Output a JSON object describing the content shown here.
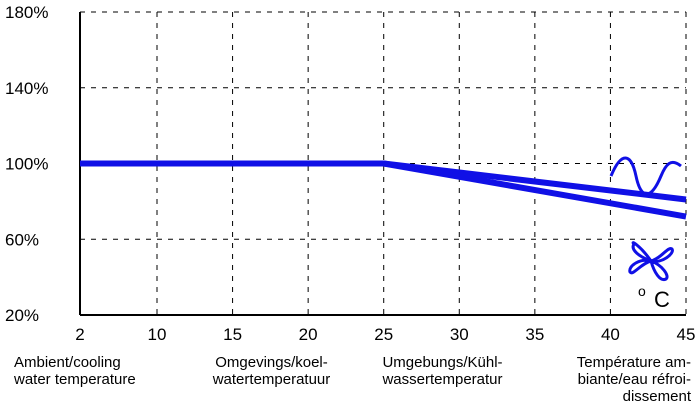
{
  "chart_data": {
    "type": "line",
    "x": [
      2,
      25,
      45
    ],
    "series": [
      {
        "values": [
          100,
          100,
          81
        ]
      },
      {
        "values": [
          100,
          100,
          72
        ]
      }
    ],
    "x_ticks": [
      "2",
      "10",
      "15",
      "20",
      "25",
      "30",
      "35",
      "40",
      "45"
    ],
    "x_tick_values": [
      2,
      10,
      15,
      20,
      25,
      30,
      35,
      40,
      45
    ],
    "y_ticks": [
      "20%",
      "60%",
      "100%",
      "140%",
      "180%"
    ],
    "y_tick_values": [
      20,
      60,
      100,
      140,
      180
    ],
    "ylim": [
      20,
      180
    ],
    "xlim": [
      2,
      45
    ],
    "grid": true,
    "unit_label": "o C",
    "captions": [
      [
        "Ambient/cooling",
        "water temperature"
      ],
      [
        "Omgevings/koel-",
        "watertemperatuur"
      ],
      [
        "Umgebungs/Kühl-",
        "wassertemperatur"
      ],
      [
        "Température am-",
        "biante/eau réfroi-",
        "dissement"
      ]
    ],
    "colors": {
      "series": "#1010e6",
      "axis": "#000000",
      "grid": "#000000"
    },
    "icons": [
      "water-wave-icon",
      "fan-icon"
    ]
  }
}
